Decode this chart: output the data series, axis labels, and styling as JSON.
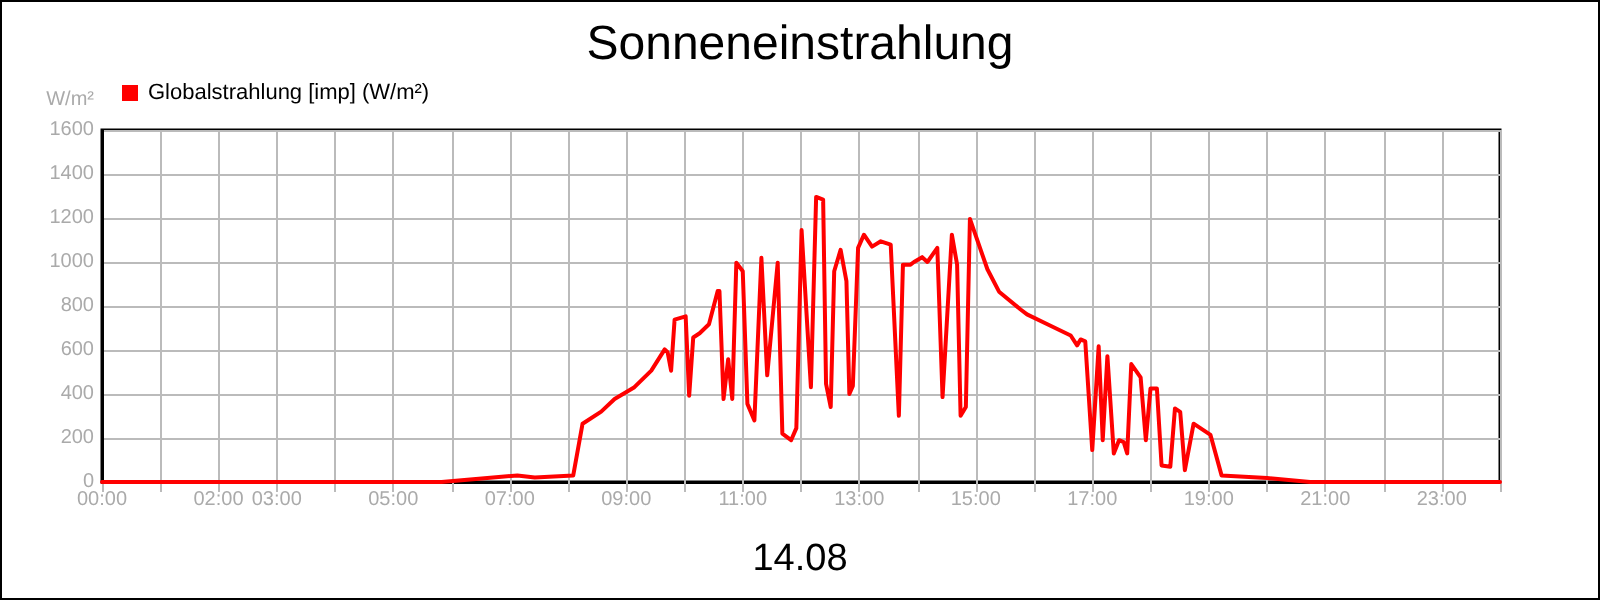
{
  "chart_data": {
    "type": "line",
    "title": "Sonneneinstrahlung",
    "xlabel": "14.08",
    "ylabel": "W/m²",
    "xlim": [
      0,
      24
    ],
    "xticks": [
      {
        "value": 0,
        "label": "00:00"
      },
      {
        "value": 1,
        "label": null
      },
      {
        "value": 2,
        "label": "02:00"
      },
      {
        "value": 3,
        "label": "03:00"
      },
      {
        "value": 4,
        "label": null
      },
      {
        "value": 5,
        "label": "05:00"
      },
      {
        "value": 6,
        "label": null
      },
      {
        "value": 7,
        "label": "07:00"
      },
      {
        "value": 8,
        "label": null
      },
      {
        "value": 9,
        "label": "09:00"
      },
      {
        "value": 10,
        "label": null
      },
      {
        "value": 11,
        "label": "11:00"
      },
      {
        "value": 12,
        "label": null
      },
      {
        "value": 13,
        "label": "13:00"
      },
      {
        "value": 14,
        "label": null
      },
      {
        "value": 15,
        "label": "15:00"
      },
      {
        "value": 16,
        "label": null
      },
      {
        "value": 17,
        "label": "17:00"
      },
      {
        "value": 18,
        "label": null
      },
      {
        "value": 19,
        "label": "19:00"
      },
      {
        "value": 20,
        "label": null
      },
      {
        "value": 21,
        "label": "21:00"
      },
      {
        "value": 22,
        "label": null
      },
      {
        "value": 23,
        "label": "23:00"
      },
      {
        "value": 24,
        "label": null
      }
    ],
    "ylim": [
      0,
      1600
    ],
    "yticks": [
      0,
      200,
      400,
      600,
      800,
      1000,
      1200,
      1400,
      1600
    ],
    "grid": true,
    "legend": "top left",
    "marker": "none",
    "line_style": "solid",
    "series": [
      {
        "name": "Globalstrahlung [imp] (W/m²)",
        "color": "#ff0000",
        "x": [
          0,
          5.83,
          6.86,
          7.13,
          7.43,
          8.09,
          8.25,
          8.57,
          8.8,
          9.14,
          9.43,
          9.66,
          9.71,
          9.77,
          9.83,
          10.02,
          10.08,
          10.15,
          10.26,
          10.42,
          10.57,
          10.6,
          10.67,
          10.75,
          10.82,
          10.89,
          11.0,
          11.08,
          11.2,
          11.32,
          11.42,
          11.6,
          11.68,
          11.83,
          11.92,
          12.01,
          12.17,
          12.26,
          12.38,
          12.43,
          12.51,
          12.57,
          12.68,
          12.78,
          12.83,
          12.89,
          12.98,
          13.08,
          13.22,
          13.37,
          13.54,
          13.68,
          13.75,
          13.88,
          13.94,
          14.08,
          14.17,
          14.34,
          14.43,
          14.59,
          14.68,
          14.74,
          14.83,
          14.9,
          15.2,
          15.4,
          15.77,
          15.88,
          16.23,
          16.63,
          16.74,
          16.8,
          16.88,
          17.0,
          17.11,
          17.18,
          17.26,
          17.37,
          17.46,
          17.54,
          17.6,
          17.67,
          17.83,
          17.92,
          18.0,
          18.11,
          18.19,
          18.34,
          18.42,
          18.51,
          18.59,
          18.74,
          19.03,
          19.22,
          20.0,
          20.74,
          24
        ],
        "values": [
          0,
          0,
          24,
          30,
          20,
          30,
          265,
          320,
          377,
          431,
          506,
          603,
          590,
          506,
          738,
          753,
          392,
          657,
          676,
          717,
          868,
          868,
          377,
          558,
          377,
          997,
          958,
          355,
          280,
          1019,
          485,
          997,
          220,
          190,
          245,
          1145,
          431,
          1296,
          1284,
          446,
          341,
          958,
          1055,
          913,
          400,
          437,
          1064,
          1124,
          1070,
          1094,
          1079,
          301,
          988,
          988,
          1000,
          1022,
          1000,
          1064,
          386,
          1124,
          988,
          301,
          341,
          1196,
          967,
          865,
          784,
          762,
          717,
          666,
          621,
          648,
          639,
          145,
          617,
          190,
          572,
          130,
          190,
          181,
          130,
          536,
          476,
          190,
          425,
          425,
          75,
          69,
          334,
          319,
          54,
          265,
          214,
          30,
          18,
          0,
          0
        ]
      }
    ]
  }
}
